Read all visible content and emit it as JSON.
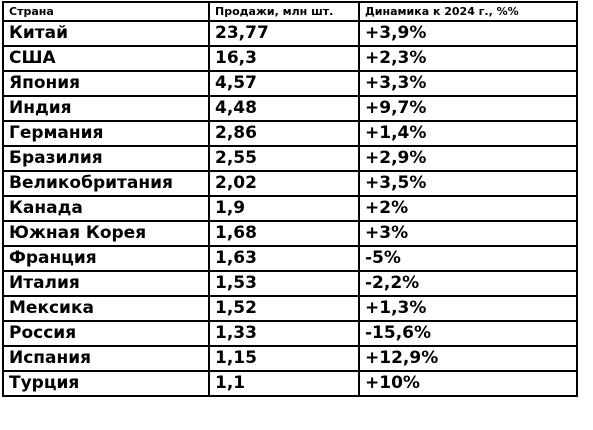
{
  "table": {
    "headers": {
      "country": "Страна",
      "sales": "Продажи, млн шт.",
      "dynamics": "Динамика к 2024 г., %%"
    },
    "rows": [
      {
        "country": "Китай",
        "sales": "23,77",
        "dynamics": "+3,9%"
      },
      {
        "country": "США",
        "sales": "16,3",
        "dynamics": "+2,3%"
      },
      {
        "country": "Япония",
        "sales": "4,57",
        "dynamics": "+3,3%"
      },
      {
        "country": "Индия",
        "sales": "4,48",
        "dynamics": "+9,7%"
      },
      {
        "country": "Германия",
        "sales": "2,86",
        "dynamics": "+1,4%"
      },
      {
        "country": "Бразилия",
        "sales": "2,55",
        "dynamics": "+2,9%"
      },
      {
        "country": "Великобритания",
        "sales": "2,02",
        "dynamics": "+3,5%"
      },
      {
        "country": "Канада",
        "sales": "1,9",
        "dynamics": "+2%"
      },
      {
        "country": "Южная Корея",
        "sales": "1,68",
        "dynamics": "+3%"
      },
      {
        "country": "Франция",
        "sales": "1,63",
        "dynamics": "-5%"
      },
      {
        "country": "Италия",
        "sales": "1,53",
        "dynamics": "-2,2%"
      },
      {
        "country": "Мексика",
        "sales": "1,52",
        "dynamics": "+1,3%"
      },
      {
        "country": "Россия",
        "sales": "1,33",
        "dynamics": "-15,6%"
      },
      {
        "country": "Испания",
        "sales": "1,15",
        "dynamics": "+12,9%"
      },
      {
        "country": "Турция",
        "sales": "1,1",
        "dynamics": "+10%"
      }
    ]
  }
}
